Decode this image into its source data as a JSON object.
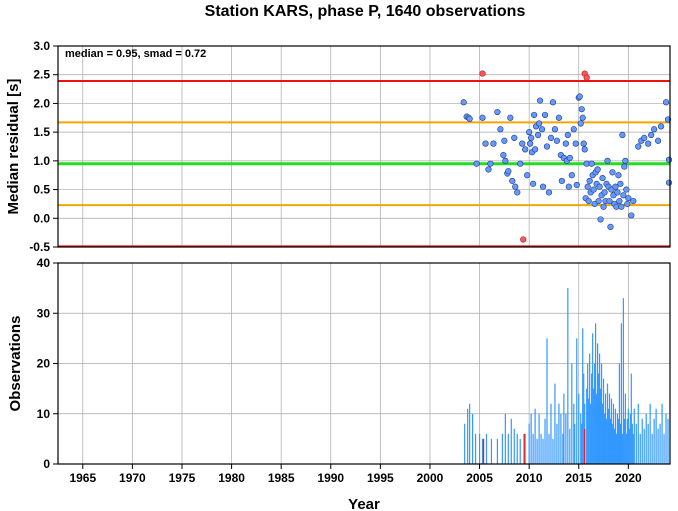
{
  "title": "Station KARS, phase P, 1640 observations",
  "colors": {
    "limit_line": "#ee1111",
    "smad_line": "#f0a800",
    "median_line": "#22dd22",
    "point": "#6699ff",
    "outlier_point": "#ff5555",
    "bar": "#3399ff",
    "outlier_bar": "#ee2222"
  },
  "chart_data": [
    {
      "type": "scatter",
      "ylabel": "Median residual [s]",
      "annotation": "median = 0.95, smad = 0.72",
      "xlim": [
        1962.5,
        2024.2
      ],
      "ylim": [
        -0.5,
        3.0
      ],
      "yticks": [
        "3.0",
        "2.5",
        "2.0",
        "1.5",
        "1.0",
        "0.5",
        "0.0",
        "-0.5"
      ],
      "yticks_values": [
        3.0,
        2.5,
        2.0,
        1.5,
        1.0,
        0.5,
        0.0,
        -0.5
      ],
      "grid": true,
      "hlines": [
        {
          "name": "upper-limit",
          "y": 2.39,
          "color": "#ee1111"
        },
        {
          "name": "upper-smad",
          "y": 1.67,
          "color": "#f0a800"
        },
        {
          "name": "median",
          "y": 0.95,
          "color": "#22dd22"
        },
        {
          "name": "lower-smad",
          "y": 0.23,
          "color": "#f0a800"
        },
        {
          "name": "lower-limit",
          "y": -0.49,
          "color": "#ee1111"
        }
      ],
      "points": [
        [
          2003.4,
          2.02
        ],
        [
          2003.7,
          1.77
        ],
        [
          2003.9,
          1.75
        ],
        [
          2004.0,
          1.73
        ],
        [
          2004.7,
          0.95
        ],
        [
          2005.3,
          1.75
        ],
        [
          2005.6,
          1.3
        ],
        [
          2005.9,
          0.85
        ],
        [
          2006.1,
          0.95
        ],
        [
          2006.4,
          1.3
        ],
        [
          2006.8,
          1.85
        ],
        [
          2007.1,
          1.55
        ],
        [
          2007.4,
          1.1
        ],
        [
          2007.5,
          1.35
        ],
        [
          2007.6,
          1.0
        ],
        [
          2007.8,
          0.78
        ],
        [
          2007.9,
          0.82
        ],
        [
          2008.1,
          1.75
        ],
        [
          2008.3,
          0.65
        ],
        [
          2008.5,
          1.4
        ],
        [
          2008.6,
          0.55
        ],
        [
          2008.8,
          0.45
        ],
        [
          2009.1,
          0.95
        ],
        [
          2009.3,
          1.3
        ],
        [
          2009.6,
          1.2
        ],
        [
          2009.8,
          0.75
        ],
        [
          2010.0,
          1.5
        ],
        [
          2010.1,
          1.3
        ],
        [
          2010.2,
          1.4
        ],
        [
          2010.3,
          1.15
        ],
        [
          2010.4,
          0.6
        ],
        [
          2010.5,
          1.8
        ],
        [
          2010.6,
          1.2
        ],
        [
          2010.7,
          1.6
        ],
        [
          2010.9,
          1.45
        ],
        [
          2011.0,
          1.65
        ],
        [
          2011.1,
          2.05
        ],
        [
          2011.3,
          1.55
        ],
        [
          2011.4,
          0.55
        ],
        [
          2011.6,
          1.8
        ],
        [
          2011.8,
          1.25
        ],
        [
          2012.0,
          0.45
        ],
        [
          2012.2,
          1.4
        ],
        [
          2012.4,
          2.02
        ],
        [
          2012.6,
          1.55
        ],
        [
          2012.8,
          1.35
        ],
        [
          2013.0,
          1.75
        ],
        [
          2013.2,
          1.1
        ],
        [
          2013.3,
          0.65
        ],
        [
          2013.5,
          1.05
        ],
        [
          2013.7,
          1.3
        ],
        [
          2013.8,
          1.0
        ],
        [
          2013.9,
          1.45
        ],
        [
          2014.0,
          0.55
        ],
        [
          2014.1,
          1.05
        ],
        [
          2014.3,
          0.75
        ],
        [
          2014.5,
          1.55
        ],
        [
          2014.7,
          1.3
        ],
        [
          2014.8,
          0.58
        ],
        [
          2015.0,
          2.1
        ],
        [
          2015.1,
          2.12
        ],
        [
          2015.2,
          1.65
        ],
        [
          2015.3,
          1.9
        ],
        [
          2015.4,
          1.75
        ],
        [
          2015.5,
          1.3
        ],
        [
          2015.6,
          1.2
        ],
        [
          2015.7,
          0.35
        ],
        [
          2015.8,
          0.95
        ],
        [
          2015.9,
          0.55
        ],
        [
          2016.0,
          0.3
        ],
        [
          2016.1,
          0.65
        ],
        [
          2016.2,
          0.45
        ],
        [
          2016.3,
          0.95
        ],
        [
          2016.4,
          0.75
        ],
        [
          2016.5,
          0.5
        ],
        [
          2016.6,
          0.25
        ],
        [
          2016.7,
          0.8
        ],
        [
          2016.8,
          0.6
        ],
        [
          2016.9,
          0.85
        ],
        [
          2017.0,
          0.3
        ],
        [
          2017.1,
          0.55
        ],
        [
          2017.2,
          -0.02
        ],
        [
          2017.3,
          0.4
        ],
        [
          2017.4,
          0.7
        ],
        [
          2017.5,
          0.2
        ],
        [
          2017.6,
          0.45
        ],
        [
          2017.7,
          0.3
        ],
        [
          2017.8,
          0.6
        ],
        [
          2017.9,
          1.0
        ],
        [
          2018.0,
          0.55
        ],
        [
          2018.1,
          0.3
        ],
        [
          2018.2,
          -0.15
        ],
        [
          2018.3,
          0.5
        ],
        [
          2018.4,
          0.8
        ],
        [
          2018.5,
          0.4
        ],
        [
          2018.6,
          0.25
        ],
        [
          2018.7,
          0.55
        ],
        [
          2018.8,
          0.2
        ],
        [
          2018.9,
          0.45
        ],
        [
          2019.0,
          0.75
        ],
        [
          2019.1,
          0.3
        ],
        [
          2019.2,
          0.6
        ],
        [
          2019.3,
          0.2
        ],
        [
          2019.4,
          1.45
        ],
        [
          2019.5,
          0.4
        ],
        [
          2019.6,
          0.9
        ],
        [
          2019.7,
          1.0
        ],
        [
          2019.8,
          0.5
        ],
        [
          2019.9,
          0.25
        ],
        [
          2020.0,
          0.35
        ],
        [
          2020.3,
          0.05
        ],
        [
          2020.5,
          0.3
        ],
        [
          2021.0,
          1.25
        ],
        [
          2021.3,
          1.35
        ],
        [
          2021.6,
          1.4
        ],
        [
          2022.0,
          1.3
        ],
        [
          2022.3,
          1.45
        ],
        [
          2022.6,
          1.55
        ],
        [
          2023.0,
          1.35
        ],
        [
          2023.3,
          1.6
        ],
        [
          2023.8,
          2.02
        ],
        [
          2024.0,
          1.72
        ],
        [
          2024.1,
          1.02
        ],
        [
          2024.1,
          0.62
        ]
      ],
      "outliers": [
        [
          2005.3,
          2.52
        ],
        [
          2009.4,
          -0.37
        ],
        [
          2015.6,
          2.52
        ],
        [
          2015.8,
          2.45
        ]
      ]
    },
    {
      "type": "bar",
      "ylabel": "Observations",
      "xlabel": "Year",
      "xlim": [
        1962.5,
        2024.2
      ],
      "ylim": [
        0,
        40
      ],
      "xticks": [
        "1965",
        "1970",
        "1975",
        "1980",
        "1985",
        "1990",
        "1995",
        "2000",
        "2005",
        "2010",
        "2015",
        "2020"
      ],
      "xticks_values": [
        1965,
        1970,
        1975,
        1980,
        1985,
        1990,
        1995,
        2000,
        2005,
        2010,
        2015,
        2020
      ],
      "yticks": [
        "40",
        "30",
        "20",
        "10",
        "0"
      ],
      "yticks_values": [
        40,
        30,
        20,
        10,
        0
      ],
      "grid": true,
      "bars": [
        [
          2003.5,
          8
        ],
        [
          2003.8,
          11
        ],
        [
          2004.0,
          12
        ],
        [
          2004.3,
          10
        ],
        [
          2004.6,
          6
        ],
        [
          2005.0,
          6
        ],
        [
          2005.3,
          5
        ],
        [
          2005.7,
          6
        ],
        [
          2006.2,
          5
        ],
        [
          2006.8,
          5
        ],
        [
          2007.3,
          6
        ],
        [
          2007.6,
          10
        ],
        [
          2007.9,
          6
        ],
        [
          2008.2,
          9
        ],
        [
          2008.5,
          7
        ],
        [
          2008.8,
          6
        ],
        [
          2009.1,
          5
        ],
        [
          2009.6,
          6
        ],
        [
          2010.0,
          8
        ],
        [
          2010.2,
          10
        ],
        [
          2010.4,
          6
        ],
        [
          2010.6,
          11
        ],
        [
          2010.8,
          5
        ],
        [
          2011.0,
          10
        ],
        [
          2011.2,
          6
        ],
        [
          2011.4,
          5
        ],
        [
          2011.6,
          9
        ],
        [
          2011.8,
          25
        ],
        [
          2012.0,
          6
        ],
        [
          2012.2,
          12
        ],
        [
          2012.4,
          5
        ],
        [
          2012.6,
          16
        ],
        [
          2012.8,
          8
        ],
        [
          2013.0,
          12
        ],
        [
          2013.2,
          10
        ],
        [
          2013.4,
          6
        ],
        [
          2013.5,
          14
        ],
        [
          2013.7,
          10
        ],
        [
          2013.9,
          35
        ],
        [
          2014.1,
          7
        ],
        [
          2014.3,
          20
        ],
        [
          2014.5,
          12
        ],
        [
          2014.6,
          8
        ],
        [
          2014.8,
          25
        ],
        [
          2015.0,
          14
        ],
        [
          2015.2,
          10
        ],
        [
          2015.3,
          8
        ],
        [
          2015.4,
          27
        ],
        [
          2015.5,
          18
        ],
        [
          2015.6,
          12
        ],
        [
          2015.8,
          15
        ],
        [
          2015.9,
          20
        ],
        [
          2016.0,
          13
        ],
        [
          2016.1,
          22
        ],
        [
          2016.2,
          12
        ],
        [
          2016.3,
          18
        ],
        [
          2016.4,
          26
        ],
        [
          2016.5,
          15
        ],
        [
          2016.6,
          20
        ],
        [
          2016.7,
          28
        ],
        [
          2016.8,
          14
        ],
        [
          2016.9,
          24
        ],
        [
          2017.0,
          18
        ],
        [
          2017.1,
          22
        ],
        [
          2017.2,
          15
        ],
        [
          2017.3,
          20
        ],
        [
          2017.4,
          12
        ],
        [
          2017.5,
          17
        ],
        [
          2017.6,
          10
        ],
        [
          2017.7,
          14
        ],
        [
          2017.8,
          9
        ],
        [
          2017.9,
          16
        ],
        [
          2018.0,
          11
        ],
        [
          2018.1,
          14
        ],
        [
          2018.2,
          9
        ],
        [
          2018.3,
          13
        ],
        [
          2018.4,
          8
        ],
        [
          2018.5,
          12
        ],
        [
          2018.6,
          7
        ],
        [
          2018.7,
          11
        ],
        [
          2018.8,
          6
        ],
        [
          2018.9,
          10
        ],
        [
          2019.0,
          9
        ],
        [
          2019.1,
          20
        ],
        [
          2019.2,
          8
        ],
        [
          2019.3,
          28
        ],
        [
          2019.4,
          6
        ],
        [
          2019.5,
          33
        ],
        [
          2019.6,
          9
        ],
        [
          2019.7,
          14
        ],
        [
          2019.8,
          6
        ],
        [
          2019.9,
          9
        ],
        [
          2020.0,
          11
        ],
        [
          2020.1,
          7
        ],
        [
          2020.2,
          10
        ],
        [
          2020.3,
          18
        ],
        [
          2020.4,
          8
        ],
        [
          2020.5,
          6
        ],
        [
          2020.6,
          11
        ],
        [
          2020.8,
          8
        ],
        [
          2021.0,
          12
        ],
        [
          2021.2,
          6
        ],
        [
          2021.4,
          9
        ],
        [
          2021.6,
          7
        ],
        [
          2021.8,
          10
        ],
        [
          2022.0,
          8
        ],
        [
          2022.2,
          12
        ],
        [
          2022.4,
          6
        ],
        [
          2022.6,
          9
        ],
        [
          2022.8,
          11
        ],
        [
          2023.0,
          7
        ],
        [
          2023.2,
          8
        ],
        [
          2023.4,
          12
        ],
        [
          2023.6,
          6
        ],
        [
          2023.8,
          10
        ],
        [
          2024.0,
          9
        ]
      ],
      "outlier_bars": [
        [
          2005.4,
          5
        ],
        [
          2009.5,
          6
        ],
        [
          2015.6,
          7
        ]
      ]
    }
  ]
}
